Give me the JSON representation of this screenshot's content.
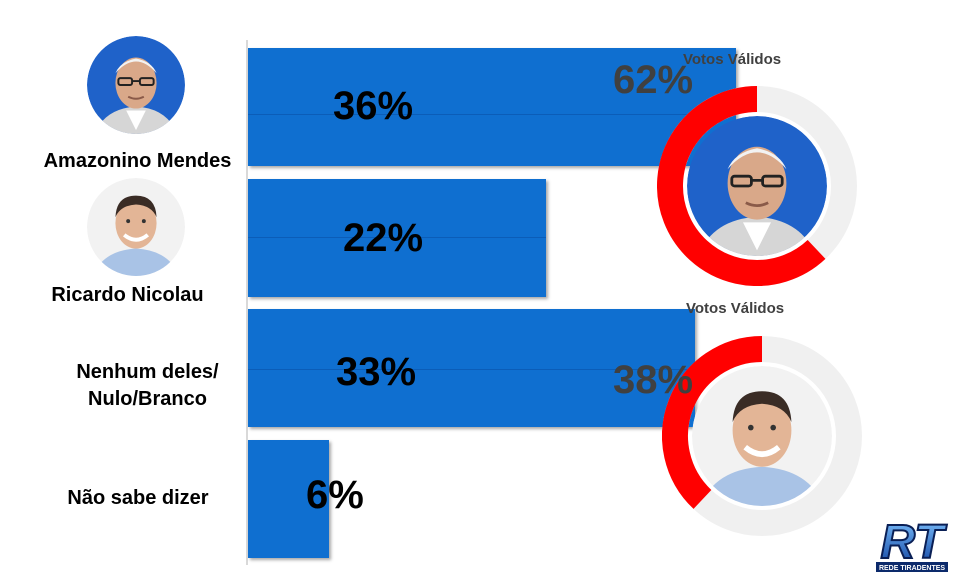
{
  "chart_data": [
    {
      "type": "bar",
      "orientation": "horizontal",
      "categories": [
        "Amazonino Mendes",
        "Ricardo Nicolau",
        "Nenhum deles/ Nulo/Branco",
        "Não sabe dizer"
      ],
      "category_lines": [
        [
          "Amazonino Mendes"
        ],
        [
          "Ricardo Nicolau"
        ],
        [
          "Nenhum deles/",
          "Nulo/Branco"
        ],
        [
          "Não sabe dizer"
        ]
      ],
      "values": [
        36,
        22,
        33,
        6
      ],
      "value_labels": [
        "36%",
        "22%",
        "33%",
        "6%"
      ],
      "xlim": [
        0,
        48
      ],
      "grid": false,
      "bar_color": "#0f6fd0"
    },
    {
      "type": "pie",
      "style": "donut",
      "title": "Votos Válidos",
      "subject": "Amazonino Mendes",
      "values": [
        62,
        38
      ],
      "value_label": "62%",
      "colors": [
        "#ff0000",
        "#f0f0f0"
      ]
    },
    {
      "type": "pie",
      "style": "donut",
      "title": "Votos Válidos",
      "subject": "Ricardo Nicolau",
      "values": [
        38,
        62
      ],
      "value_label": "38%",
      "colors": [
        "#ff0000",
        "#f0f0f0"
      ]
    }
  ],
  "logo": {
    "text": "RT",
    "subtext": "REDE TIRADENTES"
  },
  "colors": {
    "bar": "#0f6fd0",
    "donut_fill": "#ff0000",
    "donut_track": "#f0f0f0",
    "photo_bg_amazonino": "#1f62c9",
    "photo_bg_ricardo": "#f2f2f2"
  }
}
